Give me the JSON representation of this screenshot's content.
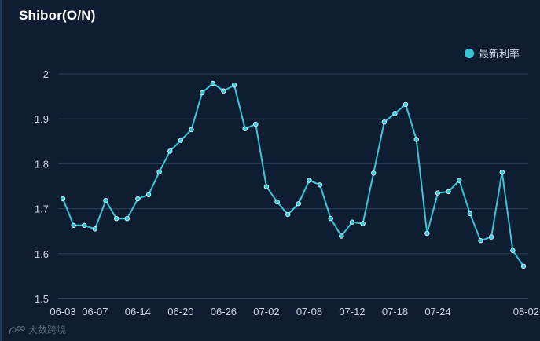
{
  "title": "Shibor(O/N)",
  "colors": {
    "background": "#0f1d33",
    "line": "#36c6d6",
    "grid": "#2c3e57",
    "axis": "#5a6b82",
    "text": "#c9d3e0"
  },
  "watermark": {
    "icon": "shuzi-logo-icon",
    "text": "大数跨境"
  },
  "chart_data": {
    "type": "line",
    "title": "Shibor(O/N)",
    "xlabel": "",
    "ylabel": "",
    "ylim": [
      1.5,
      2.0
    ],
    "yticks": [
      "1.5",
      "1.6",
      "1.7",
      "1.8",
      "1.9",
      "2"
    ],
    "grid": true,
    "legend": "top-right",
    "x_tick_labels": [
      "06-03",
      "06-07",
      "06-14",
      "06-20",
      "06-26",
      "07-02",
      "07-08",
      "07-12",
      "07-18",
      "07-24",
      "08-02"
    ],
    "x_tick_indices": [
      0,
      3,
      7,
      11,
      15,
      19,
      23,
      27,
      31,
      35,
      43
    ],
    "series": [
      {
        "name": "最新利率",
        "values": [
          1.722,
          1.663,
          1.663,
          1.655,
          1.718,
          1.678,
          1.678,
          1.722,
          1.731,
          1.782,
          1.828,
          1.852,
          1.876,
          1.958,
          1.979,
          1.962,
          1.975,
          1.878,
          1.888,
          1.749,
          1.715,
          1.687,
          1.711,
          1.763,
          1.753,
          1.678,
          1.639,
          1.67,
          1.667,
          1.779,
          1.893,
          1.912,
          1.932,
          1.854,
          1.645,
          1.735,
          1.738,
          1.763,
          1.689,
          1.629,
          1.637,
          1.781,
          1.607,
          1.572
        ]
      }
    ]
  }
}
